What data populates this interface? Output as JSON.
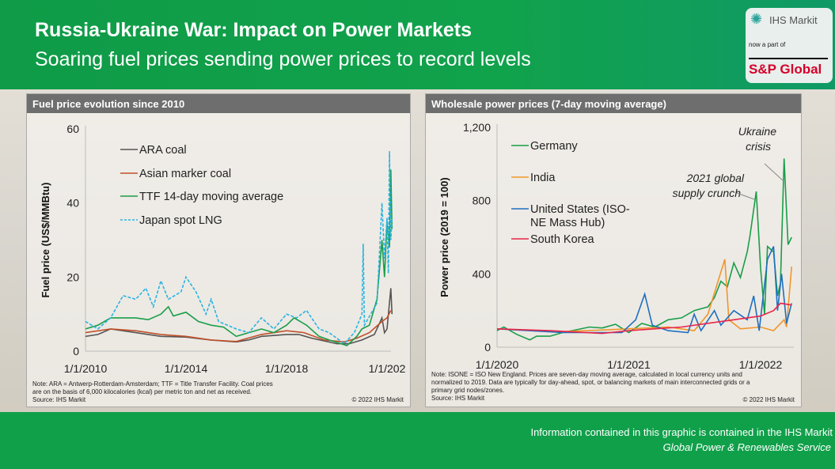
{
  "header": {
    "title": "Russia-Ukraine War: Impact on Power Markets",
    "subtitle": "Soaring fuel prices sending power prices to record levels"
  },
  "logo": {
    "brand": "IHS Markit",
    "tagline": "now a part of",
    "parent": "S&P Global"
  },
  "footer": {
    "line1": "Information contained in this graphic is contained in the IHS Markit",
    "line2": "Global Power & Renewables Service"
  },
  "left_panel": {
    "heading": "Fuel price evolution since 2010",
    "note1": "Note: ARA = Antwerp-Rotterdam-Amsterdam; TTF = Title Transfer Facility. Coal prices",
    "note2": "are on the basis of 6,000 kilocalories (kcal) per metric ton and net as received.",
    "source": "Source: IHS Markit",
    "copyright": "© 2022 IHS Markit"
  },
  "right_panel": {
    "heading": "Wholesale power prices (7-day moving average)",
    "note1": "Note: ISONE = ISO New England. Prices are seven-day moving average, calculated in local currency units and",
    "note2": "normalized to 2019. Data are typically for day-ahead, spot, or balancing markets of main interconnected grids or a",
    "note3": "primary grid nodes/zones.",
    "source": "Source: IHS Markit",
    "copyright": "© 2022 IHS Markit"
  },
  "chart_data": [
    {
      "type": "line",
      "title": "Fuel price evolution since 2010",
      "ylabel": "Fuel price (US$/MMBtu)",
      "xlabel": "",
      "ylim": [
        0,
        60
      ],
      "yticks": [
        "0",
        "20",
        "40",
        "60"
      ],
      "xticks": [
        "1/1/2010",
        "1/1/2014",
        "1/1/2018",
        "1/1/202"
      ],
      "legend": "top-left",
      "grid": false,
      "series": [
        {
          "name": "ARA coal",
          "color": "#555555",
          "dash": false,
          "points": [
            [
              "2010-01-01",
              4
            ],
            [
              "2010-07-01",
              4.5
            ],
            [
              "2011-01-01",
              6
            ],
            [
              "2012-01-01",
              5
            ],
            [
              "2013-01-01",
              4
            ],
            [
              "2014-01-01",
              3.8
            ],
            [
              "2015-01-01",
              3
            ],
            [
              "2016-01-01",
              2.5
            ],
            [
              "2016-07-01",
              3
            ],
            [
              "2017-01-01",
              4
            ],
            [
              "2018-01-01",
              4.5
            ],
            [
              "2018-07-01",
              4.5
            ],
            [
              "2019-01-01",
              3.5
            ],
            [
              "2020-01-01",
              2
            ],
            [
              "2020-07-01",
              2
            ],
            [
              "2021-01-01",
              3
            ],
            [
              "2021-07-01",
              4.5
            ],
            [
              "2021-10-19",
              9
            ],
            [
              "2021-11-25",
              5
            ],
            [
              "2022-01-01",
              6
            ],
            [
              "2022-02-25",
              17
            ],
            [
              "2022-03-14",
              10
            ]
          ]
        },
        {
          "name": "Asian marker coal",
          "color": "#c0502a",
          "dash": false,
          "points": [
            [
              "2010-01-01",
              5
            ],
            [
              "2011-01-01",
              6
            ],
            [
              "2012-01-01",
              5.5
            ],
            [
              "2013-01-01",
              4.5
            ],
            [
              "2014-01-01",
              4
            ],
            [
              "2015-01-01",
              3
            ],
            [
              "2016-01-01",
              2.6
            ],
            [
              "2017-01-01",
              4.5
            ],
            [
              "2018-01-01",
              5.5
            ],
            [
              "2018-09-13",
              5
            ],
            [
              "2019-07-01",
              3
            ],
            [
              "2020-04-20",
              2.5
            ],
            [
              "2020-10-19",
              3.5
            ],
            [
              "2021-04-20",
              5
            ],
            [
              "2021-10-19",
              8
            ],
            [
              "2022-01-01",
              9
            ],
            [
              "2022-02-25",
              11
            ]
          ]
        },
        {
          "name": "TTF 14-day moving average",
          "color": "#1a9e4a",
          "dash": false,
          "points": [
            [
              "2010-01-01",
              6
            ],
            [
              "2010-07-01",
              7
            ],
            [
              "2011-01-01",
              9
            ],
            [
              "2012-01-01",
              9
            ],
            [
              "2012-07-01",
              8.5
            ],
            [
              "2013-01-01",
              10
            ],
            [
              "2013-04-20",
              12
            ],
            [
              "2013-07-01",
              9.5
            ],
            [
              "2014-01-01",
              10.5
            ],
            [
              "2014-07-01",
              8
            ],
            [
              "2015-01-01",
              7
            ],
            [
              "2015-07-01",
              6.5
            ],
            [
              "2016-01-01",
              4
            ],
            [
              "2016-07-01",
              5
            ],
            [
              "2017-01-01",
              6
            ],
            [
              "2017-07-01",
              5
            ],
            [
              "2018-01-01",
              7
            ],
            [
              "2018-04-20",
              9
            ],
            [
              "2018-10-19",
              7
            ],
            [
              "2019-04-20",
              4
            ],
            [
              "2019-09-13",
              3
            ],
            [
              "2020-05-27",
              1.5
            ],
            [
              "2020-10-19",
              4
            ],
            [
              "2021-01-01",
              6
            ],
            [
              "2021-04-20",
              7
            ],
            [
              "2021-08-08",
              14
            ],
            [
              "2021-10-19",
              30
            ],
            [
              "2021-11-25",
              20
            ],
            [
              "2022-01-01",
              35
            ],
            [
              "2022-02-06",
              28
            ],
            [
              "2022-02-25",
              49
            ],
            [
              "2022-03-14",
              33
            ]
          ]
        },
        {
          "name": "Japan spot LNG",
          "color": "#2bb3e0",
          "dash": true,
          "points": [
            [
              "2010-01-01",
              8
            ],
            [
              "2010-07-01",
              6
            ],
            [
              "2011-01-01",
              9
            ],
            [
              "2011-07-01",
              15
            ],
            [
              "2012-01-01",
              14
            ],
            [
              "2012-05-27",
              17
            ],
            [
              "2012-09-13",
              12
            ],
            [
              "2013-01-01",
              19
            ],
            [
              "2013-04-20",
              14
            ],
            [
              "2013-10-19",
              16
            ],
            [
              "2014-01-01",
              20
            ],
            [
              "2014-05-27",
              16
            ],
            [
              "2014-10-19",
              10
            ],
            [
              "2015-01-01",
              14
            ],
            [
              "2015-04-20",
              8
            ],
            [
              "2016-01-01",
              6
            ],
            [
              "2016-07-01",
              5
            ],
            [
              "2017-01-01",
              9
            ],
            [
              "2017-07-01",
              6
            ],
            [
              "2018-01-01",
              10
            ],
            [
              "2018-05-27",
              9
            ],
            [
              "2018-10-19",
              11
            ],
            [
              "2019-04-20",
              6
            ],
            [
              "2019-09-13",
              5
            ],
            [
              "2020-04-20",
              2
            ],
            [
              "2020-09-13",
              5
            ],
            [
              "2021-01-01",
              10
            ],
            [
              "2021-01-20",
              29
            ],
            [
              "2021-02-06",
              7
            ],
            [
              "2021-08-08",
              13
            ],
            [
              "2021-10-19",
              40
            ],
            [
              "2021-11-25",
              25
            ],
            [
              "2022-01-01",
              36
            ],
            [
              "2022-01-20",
              21
            ],
            [
              "2022-02-06",
              54
            ],
            [
              "2022-02-25",
              30
            ],
            [
              "2022-03-14",
              36
            ]
          ]
        }
      ]
    },
    {
      "type": "line",
      "title": "Wholesale power prices (7-day moving average)",
      "ylabel": "Power price (2019 = 100)",
      "xlabel": "",
      "ylim": [
        0,
        1200
      ],
      "yticks": [
        "0",
        "400",
        "800",
        "1,200"
      ],
      "xticks": [
        "1/1/2020",
        "1/1/2021",
        "1/1/2022"
      ],
      "legend": "top-left",
      "grid": false,
      "annotations": [
        "2021 global supply crunch",
        "Ukraine crisis"
      ],
      "series": [
        {
          "name": "Germany",
          "color": "#1a9e4a",
          "points": [
            [
              "2020-01-01",
              90
            ],
            [
              "2020-01-20",
              110
            ],
            [
              "2020-02-25",
              70
            ],
            [
              "2020-04-01",
              40
            ],
            [
              "2020-04-20",
              60
            ],
            [
              "2020-05-27",
              60
            ],
            [
              "2020-07-01",
              80
            ],
            [
              "2020-08-08",
              95
            ],
            [
              "2020-09-13",
              110
            ],
            [
              "2020-10-19",
              105
            ],
            [
              "2020-11-25",
              125
            ],
            [
              "2021-01-01",
              80
            ],
            [
              "2021-02-06",
              130
            ],
            [
              "2021-03-14",
              110
            ],
            [
              "2021-04-20",
              150
            ],
            [
              "2021-05-27",
              160
            ],
            [
              "2021-07-01",
              200
            ],
            [
              "2021-08-08",
              220
            ],
            [
              "2021-08-26",
              270
            ],
            [
              "2021-09-13",
              360
            ],
            [
              "2021-10-01",
              330
            ],
            [
              "2021-10-19",
              460
            ],
            [
              "2021-11-06",
              380
            ],
            [
              "2021-11-25",
              520
            ],
            [
              "2021-12-02",
              600
            ],
            [
              "2021-12-20",
              850
            ],
            [
              "2022-01-01",
              430
            ],
            [
              "2022-01-12",
              180
            ],
            [
              "2022-01-20",
              550
            ],
            [
              "2022-02-06",
              520
            ],
            [
              "2022-02-17",
              280
            ],
            [
              "2022-02-25",
              350
            ],
            [
              "2022-03-07",
              1030
            ],
            [
              "2022-03-18",
              560
            ],
            [
              "2022-03-28",
              600
            ]
          ]
        },
        {
          "name": "India",
          "color": "#f0962a",
          "points": [
            [
              "2020-01-01",
              100
            ],
            [
              "2020-07-01",
              85
            ],
            [
              "2021-01-01",
              100
            ],
            [
              "2021-04-20",
              110
            ],
            [
              "2021-07-01",
              90
            ],
            [
              "2021-08-08",
              180
            ],
            [
              "2021-09-24",
              480
            ],
            [
              "2021-10-05",
              150
            ],
            [
              "2021-11-06",
              100
            ],
            [
              "2022-01-01",
              110
            ],
            [
              "2022-02-06",
              90
            ],
            [
              "2022-03-07",
              150
            ],
            [
              "2022-03-14",
              110
            ],
            [
              "2022-03-28",
              440
            ]
          ]
        },
        {
          "name": "United States (ISO-NE Mass Hub)",
          "color": "#1f6fbf",
          "points": [
            [
              "2020-01-01",
              100
            ],
            [
              "2020-07-01",
              80
            ],
            [
              "2020-12-13",
              80
            ],
            [
              "2021-01-20",
              150
            ],
            [
              "2021-02-14",
              290
            ],
            [
              "2021-03-07",
              120
            ],
            [
              "2021-04-20",
              90
            ],
            [
              "2021-06-14",
              80
            ],
            [
              "2021-07-01",
              180
            ],
            [
              "2021-07-20",
              90
            ],
            [
              "2021-08-26",
              200
            ],
            [
              "2021-09-13",
              120
            ],
            [
              "2021-10-19",
              200
            ],
            [
              "2021-11-25",
              150
            ],
            [
              "2021-12-13",
              280
            ],
            [
              "2021-12-28",
              90
            ],
            [
              "2022-01-20",
              480
            ],
            [
              "2022-02-06",
              550
            ],
            [
              "2022-02-17",
              200
            ],
            [
              "2022-02-28",
              400
            ],
            [
              "2022-03-14",
              130
            ],
            [
              "2022-03-28",
              240
            ]
          ]
        },
        {
          "name": "South Korea",
          "color": "#e8254a",
          "points": [
            [
              "2020-01-01",
              100
            ],
            [
              "2020-05-27",
              90
            ],
            [
              "2020-10-19",
              75
            ],
            [
              "2021-01-01",
              90
            ],
            [
              "2021-05-27",
              110
            ],
            [
              "2021-10-19",
              150
            ],
            [
              "2022-01-01",
              170
            ],
            [
              "2022-02-06",
              200
            ],
            [
              "2022-02-25",
              240
            ],
            [
              "2022-03-28",
              230
            ]
          ]
        }
      ]
    }
  ]
}
